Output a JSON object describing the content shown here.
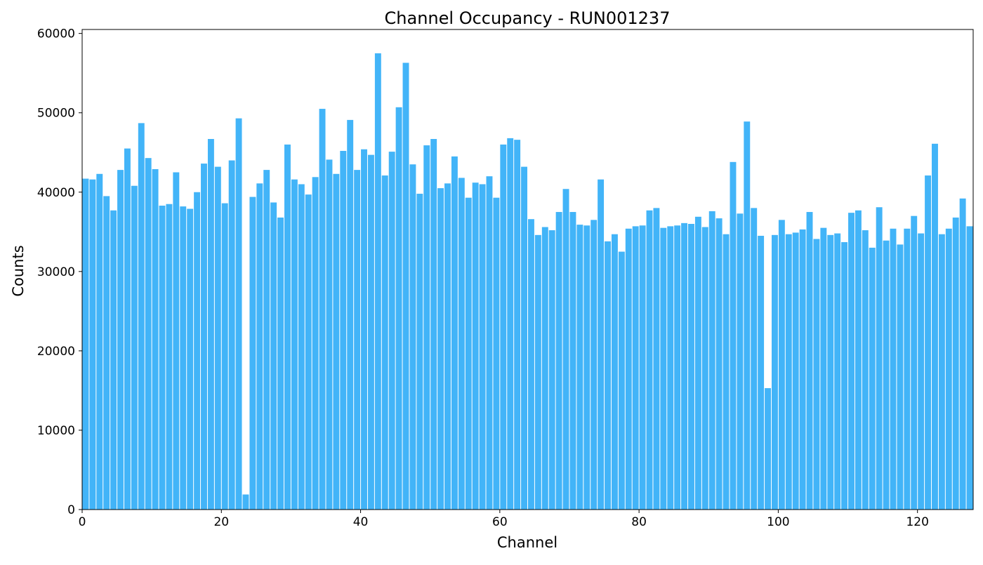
{
  "chart_data": {
    "type": "bar",
    "title": "Channel Occupancy - RUN001237",
    "xlabel": "Channel",
    "ylabel": "Counts",
    "xlim": [
      0,
      128
    ],
    "ylim": [
      0,
      60500
    ],
    "xticks": [
      0,
      20,
      40,
      60,
      80,
      100,
      120
    ],
    "yticks": [
      0,
      10000,
      20000,
      30000,
      40000,
      50000,
      60000
    ],
    "grid": false,
    "legend": "none",
    "bar_color": "#42b4f8",
    "x": [
      0,
      1,
      2,
      3,
      4,
      5,
      6,
      7,
      8,
      9,
      10,
      11,
      12,
      13,
      14,
      15,
      16,
      17,
      18,
      19,
      20,
      21,
      22,
      23,
      24,
      25,
      26,
      27,
      28,
      29,
      30,
      31,
      32,
      33,
      34,
      35,
      36,
      37,
      38,
      39,
      40,
      41,
      42,
      43,
      44,
      45,
      46,
      47,
      48,
      49,
      50,
      51,
      52,
      53,
      54,
      55,
      56,
      57,
      58,
      59,
      60,
      61,
      62,
      63,
      64,
      65,
      66,
      67,
      68,
      69,
      70,
      71,
      72,
      73,
      74,
      75,
      76,
      77,
      78,
      79,
      80,
      81,
      82,
      83,
      84,
      85,
      86,
      87,
      88,
      89,
      90,
      91,
      92,
      93,
      94,
      95,
      96,
      97,
      98,
      99,
      100,
      101,
      102,
      103,
      104,
      105,
      106,
      107,
      108,
      109,
      110,
      111,
      112,
      113,
      114,
      115,
      116,
      117,
      118,
      119,
      120,
      121,
      122,
      123,
      124,
      125,
      126,
      127
    ],
    "values": [
      41700,
      41600,
      42300,
      39500,
      37700,
      42800,
      45500,
      40800,
      48700,
      44300,
      42900,
      38300,
      38500,
      42500,
      38200,
      37900,
      40000,
      43600,
      46700,
      43200,
      38600,
      44000,
      49300,
      1900,
      39400,
      41100,
      42800,
      38700,
      36800,
      46000,
      41600,
      41000,
      39700,
      41900,
      50500,
      44100,
      42300,
      45200,
      49100,
      42800,
      45400,
      44700,
      57500,
      42100,
      45100,
      50700,
      56300,
      43500,
      39800,
      45900,
      46700,
      40500,
      41100,
      44500,
      41800,
      39300,
      41200,
      41000,
      42000,
      39300,
      46000,
      46800,
      46600,
      43200,
      36600,
      34600,
      35600,
      35200,
      37500,
      40400,
      37500,
      35900,
      35800,
      36500,
      41600,
      33800,
      34700,
      32500,
      35400,
      35700,
      35800,
      37700,
      38000,
      35500,
      35700,
      35800,
      36100,
      36000,
      36900,
      35600,
      37600,
      36700,
      34700,
      43800,
      37300,
      48900,
      38000,
      34500,
      15300,
      34600,
      36500,
      34700,
      34900,
      35300,
      37500,
      34100,
      35500,
      34600,
      34800,
      33700,
      37400,
      37700,
      35200,
      33000,
      38100,
      33900,
      35400,
      33400,
      35400,
      37000,
      34800,
      42100,
      46100,
      34700,
      35400,
      36800,
      39200,
      35700
    ]
  }
}
